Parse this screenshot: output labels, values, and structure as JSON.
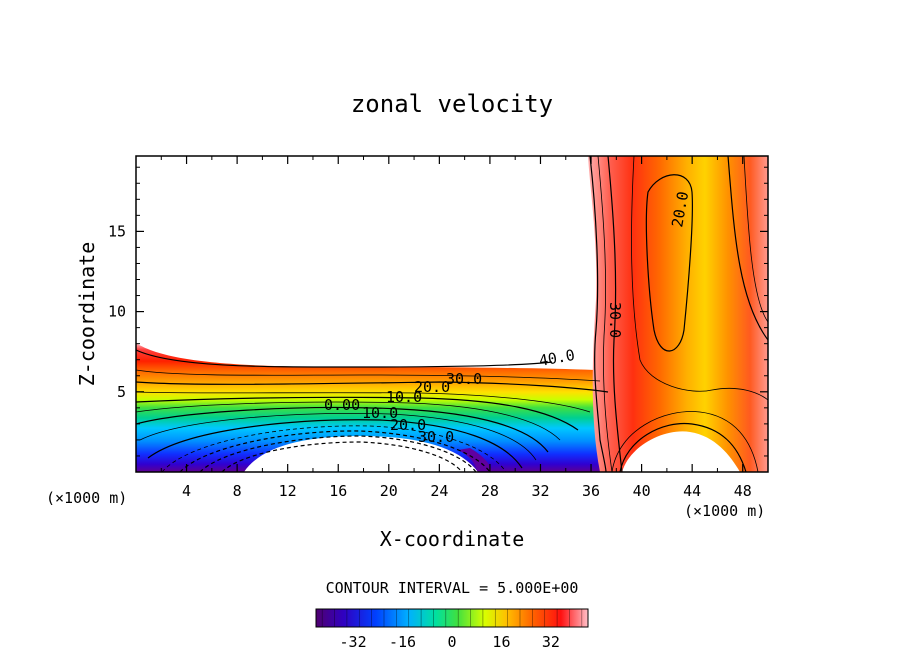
{
  "chart_data": {
    "type": "heatmap",
    "title": "zonal velocity",
    "xlabel": "X-coordinate",
    "ylabel": "Z-coordinate",
    "x_unit_left": "(×1000 m)",
    "x_unit_right": "(×1000 m)",
    "xlim": [
      0,
      50
    ],
    "ylim": [
      0,
      19.7
    ],
    "x_ticks": [
      "4",
      "8",
      "12",
      "16",
      "20",
      "24",
      "28",
      "32",
      "36",
      "40",
      "44",
      "48"
    ],
    "x_tick_values": [
      4,
      8,
      12,
      16,
      20,
      24,
      28,
      32,
      36,
      40,
      44,
      48
    ],
    "y_ticks": [
      "5",
      "10",
      "15"
    ],
    "y_tick_values": [
      5,
      10,
      15
    ],
    "contour_interval_label": "CONTOUR INTERVAL = 5.000E+00",
    "contour_interval": 5.0,
    "contour_labels": [
      {
        "text": "40.0",
        "x": 33.0,
        "z": 7.3
      },
      {
        "text": "30.0",
        "x": 26.2,
        "z": 5.8
      },
      {
        "text": "20.0",
        "x": 23.6,
        "z": 5.3
      },
      {
        "text": "10.0",
        "x": 21.5,
        "z": 4.7
      },
      {
        "text": "0.00",
        "x": 16.5,
        "z": 4.1
      },
      {
        "text": "10.0",
        "x": 18.9,
        "z": 3.7
      },
      {
        "text": "20.0",
        "x": 21.8,
        "z": 3.0
      },
      {
        "text": "30.0",
        "x": 24.0,
        "z": 2.1
      },
      {
        "text": "30.0",
        "x": 38.2,
        "z": 10.0
      },
      {
        "text": "20.0",
        "x": 43.8,
        "z": 16.5
      }
    ],
    "colorbar": {
      "range": [
        -44,
        44
      ],
      "ticks": [
        "-32",
        "-16",
        "0",
        "16",
        "32"
      ],
      "tick_values": [
        -32,
        -16,
        0,
        16,
        32
      ],
      "colormap": "rainbow"
    },
    "colors": {
      "negative_core": "#5a00a0",
      "zero": "#40c040",
      "positive_core": "#ee2200",
      "max": "#ffc0c8"
    }
  }
}
